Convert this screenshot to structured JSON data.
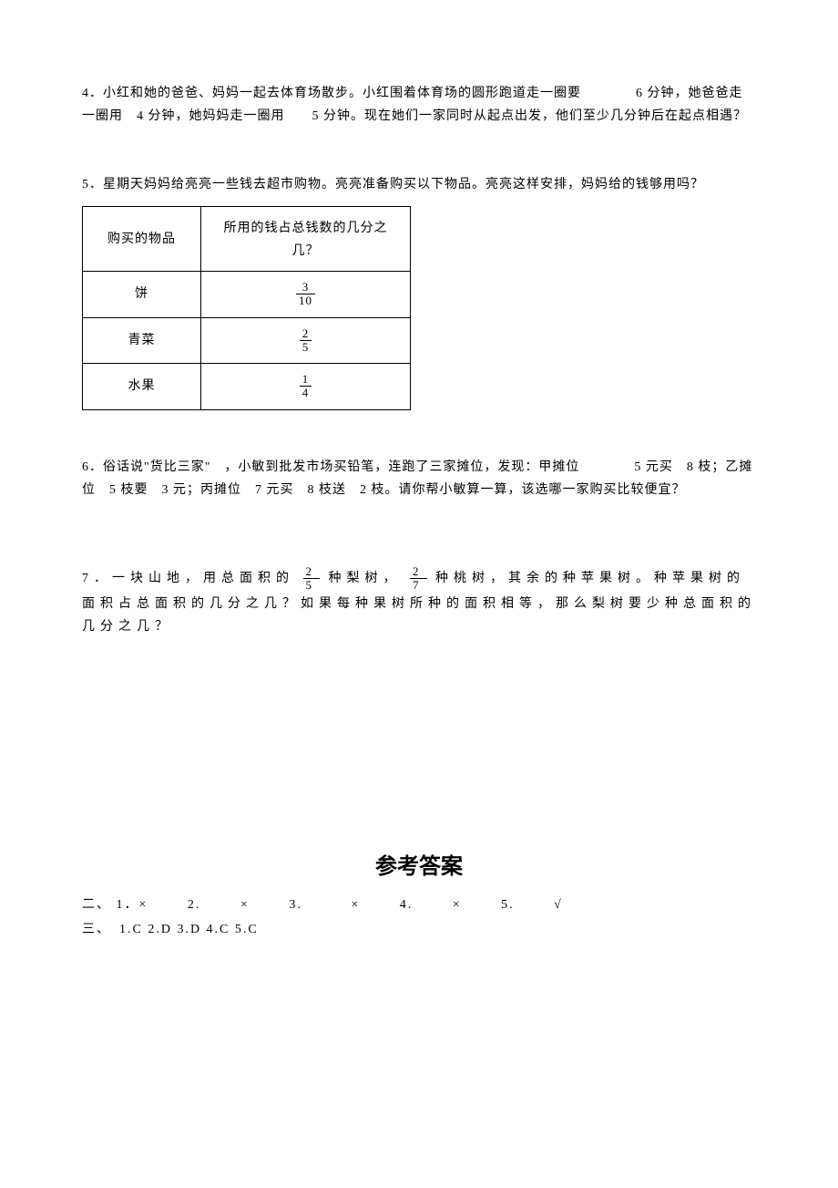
{
  "problems": {
    "p4": {
      "text": "4．小红和她的爸爸、妈妈一起去体育场散步。小红围着体育场的圆形跑道走一圈要　　　　6 分钟，她爸爸走一圈用　4 分钟，她妈妈走一圈用　　5 分钟。现在她们一家同时从起点出发，他们至少几分钟后在起点相遇？"
    },
    "p5": {
      "intro": "5．星期天妈妈给亮亮一些钱去超市购物。亮亮准备购买以下物品。亮亮这样安排，妈妈给的钱够用吗？",
      "table": {
        "header1": "购买的物品",
        "header2": "所用的钱占总钱数的几分之几？",
        "rows": [
          {
            "item": "饼",
            "num": "3",
            "den": "10"
          },
          {
            "item": "青菜",
            "num": "2",
            "den": "5"
          },
          {
            "item": "水果",
            "num": "1",
            "den": "4"
          }
        ],
        "col1_width": 130,
        "col2_width": 230,
        "border_color": "#000000"
      }
    },
    "p6": {
      "text": "6．俗话说\"货比三家\"　，小敏到批发市场买铅笔，连跑了三家摊位，发现：甲摊位　　　　5 元买　8 枝；乙摊位　5 枝要　3 元；丙摊位　7 元买　8 枝送　2 枝。请你帮小敏算一算，该选哪一家购买比较便宜？"
    },
    "p7": {
      "part1": "7．一块山地，用总面积的",
      "frac1": {
        "num": "2",
        "den": "5"
      },
      "part2": "种梨树，",
      "frac2": {
        "num": "2",
        "den": "7"
      },
      "part3": "种桃树，其余的种苹果树。种苹果树的面积占总面积的几分之几？如果每种果树所种的面积相等，那么梨树要少种总面积的几分之几？"
    }
  },
  "answers": {
    "title": "参考答案",
    "line1_label": "二、",
    "line1_items": [
      "1．×",
      "2.",
      "×",
      "3.",
      "×",
      "4.",
      "×",
      "5.",
      "√"
    ],
    "line2": "三、　1.C 2.D 3.D 4.C 5.C"
  },
  "style": {
    "background_color": "#ffffff",
    "text_color": "#000000",
    "body_fontsize": 14,
    "title_fontsize": 24
  }
}
